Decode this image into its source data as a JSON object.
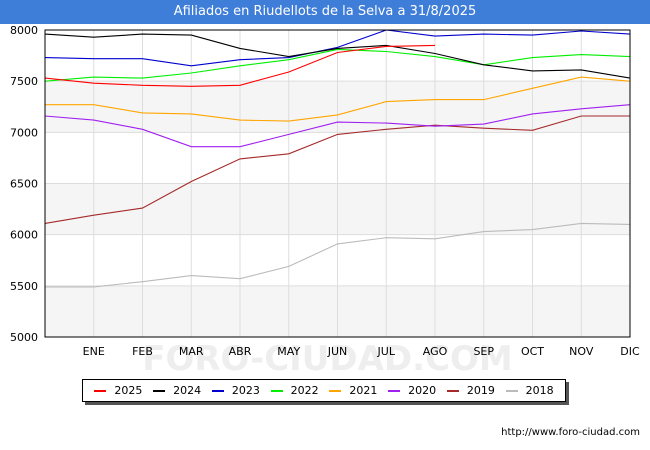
{
  "header": {
    "title": "Afiliados en Riudellots de la Selva a 31/8/2025"
  },
  "footer": {
    "url": "http://www.foro-ciudad.com"
  },
  "watermark": {
    "text": "FORO-CIUDAD.COM"
  },
  "colors": {
    "title_bg": "#3f7ed8",
    "band": "#f5f5f5",
    "grid": "#dddddd"
  },
  "chart_data": {
    "type": "line",
    "title": "Afiliados en Riudellots de la Selva a 31/8/2025",
    "xlabel": "",
    "ylabel": "",
    "categories": [
      "",
      "ENE",
      "FEB",
      "MAR",
      "ABR",
      "MAY",
      "JUN",
      "JUL",
      "AGO",
      "SEP",
      "OCT",
      "NOV",
      "DIC"
    ],
    "ylim": [
      5000,
      8000
    ],
    "yticks": [
      5000,
      5500,
      6000,
      6500,
      7000,
      7500,
      8000
    ],
    "legend_position": "bottom",
    "series": [
      {
        "name": "2025",
        "color": "#ff0000",
        "values": [
          7530,
          7480,
          7460,
          7450,
          7460,
          7590,
          7780,
          7840,
          7850,
          null,
          null,
          null,
          null
        ]
      },
      {
        "name": "2024",
        "color": "#000000",
        "values": [
          7960,
          7930,
          7960,
          7950,
          7820,
          7740,
          7820,
          7850,
          7770,
          7660,
          7600,
          7610,
          7530
        ]
      },
      {
        "name": "2023",
        "color": "#0000cc",
        "values": [
          7730,
          7720,
          7720,
          7650,
          7710,
          7730,
          7830,
          8000,
          7940,
          7960,
          7950,
          7990,
          7960
        ]
      },
      {
        "name": "2022",
        "color": "#00ee00",
        "values": [
          7500,
          7540,
          7530,
          7580,
          7650,
          7710,
          7810,
          7790,
          7740,
          7660,
          7730,
          7760,
          7740
        ]
      },
      {
        "name": "2021",
        "color": "#ffa500",
        "values": [
          7270,
          7270,
          7190,
          7180,
          7120,
          7110,
          7170,
          7300,
          7320,
          7320,
          7430,
          7540,
          7500
        ]
      },
      {
        "name": "2020",
        "color": "#a020f0",
        "values": [
          7160,
          7120,
          7030,
          6860,
          6860,
          6980,
          7100,
          7090,
          7060,
          7080,
          7180,
          7230,
          7270
        ]
      },
      {
        "name": "2019",
        "color": "#a52a2a",
        "values": [
          6110,
          6190,
          6260,
          6520,
          6740,
          6790,
          6980,
          7030,
          7070,
          7040,
          7020,
          7160,
          7160
        ]
      },
      {
        "name": "2018",
        "color": "#bbbbbb",
        "values": [
          5490,
          5490,
          5540,
          5600,
          5570,
          5690,
          5910,
          5970,
          5960,
          6030,
          6050,
          6110,
          6100
        ]
      }
    ]
  }
}
